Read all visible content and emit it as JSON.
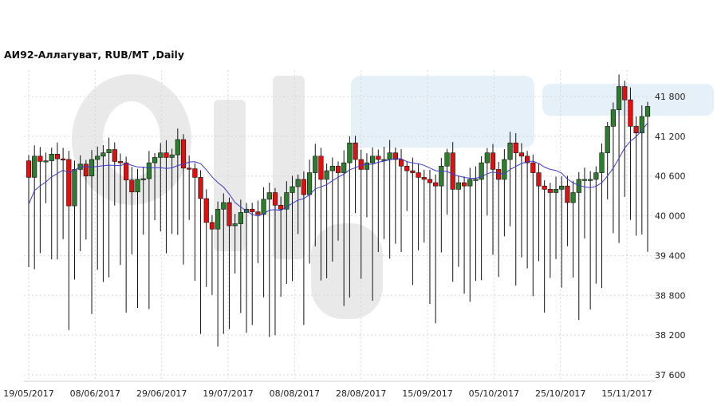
{
  "chart_data": {
    "type": "candlestick",
    "title": "АИ92-Аллагуват,  RUB/MT ,Daily",
    "ylim": [
      37400,
      42200
    ],
    "y_ticks": [
      "41 800",
      "41 200",
      "40 600",
      "40 000",
      "39 400",
      "38 800",
      "38 200",
      "37 600"
    ],
    "y_tick_values": [
      41800,
      41200,
      40600,
      40000,
      39400,
      38800,
      38200,
      37600
    ],
    "x_tick_labels": [
      "19/05/2017",
      "08/06/2017",
      "29/06/2017",
      "19/07/2017",
      "08/08/2017",
      "28/08/2017",
      "15/09/2017",
      "05/10/2017",
      "25/10/2017",
      "15/11/2017"
    ],
    "grid": true,
    "moving_average": true,
    "colors": {
      "up": "#2e7d2e",
      "down": "#e01010",
      "moving_average": "#3b3bd0",
      "grid": "#d8d8d8"
    },
    "closes": [
      40580,
      40900,
      40820,
      40830,
      40930,
      40860,
      40850,
      40150,
      40700,
      40780,
      40600,
      40850,
      40900,
      40950,
      41000,
      40820,
      40800,
      40540,
      40360,
      40550,
      40560,
      40800,
      40880,
      40950,
      40880,
      40920,
      41150,
      40720,
      40710,
      40580,
      40260,
      39900,
      39800,
      40100,
      40200,
      39850,
      39880,
      40050,
      40100,
      40060,
      40020,
      40250,
      40350,
      40160,
      40100,
      40350,
      40440,
      40550,
      40320,
      40650,
      40900,
      40550,
      40680,
      40750,
      40650,
      40800,
      41100,
      40850,
      40700,
      40800,
      40900,
      40850,
      40850,
      40950,
      40850,
      40750,
      40680,
      40650,
      40580,
      40550,
      40500,
      40450,
      40750,
      40950,
      40400,
      40500,
      40450,
      40550,
      40550,
      40800,
      40950,
      40700,
      40550,
      40850,
      41100,
      40950,
      40900,
      40800,
      40650,
      40450,
      40400,
      40350,
      40400,
      40450,
      40200,
      40350,
      40550,
      40550,
      40550,
      40650,
      40950,
      41350,
      41600,
      41950,
      41750,
      41350,
      41250,
      41500,
      41650
    ]
  }
}
